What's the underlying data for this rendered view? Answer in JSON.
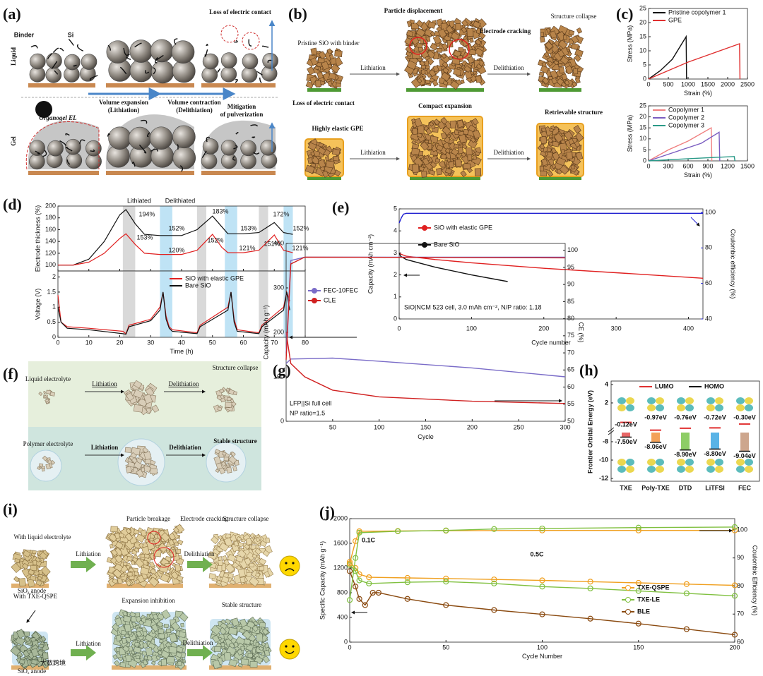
{
  "a": {
    "label": "(a)",
    "texts": [
      "Liquid",
      "Gel",
      "Binder",
      "Si",
      "Loss of electric contact",
      "Volume expansion",
      "(Lithiation)",
      "Volume contraction",
      "(Delithiation)",
      "Organogel EL",
      "Mitigation",
      "of pulverization"
    ]
  },
  "b": {
    "label": "(b)",
    "texts": [
      "Particle displacement",
      "Electrode cracking",
      "Structure collapse",
      "Pristine SiO with binder",
      "Lithiation",
      "Delithiation",
      "Loss of electric contact",
      "Compact expansion",
      "Retrievable structure",
      "Highly elastic GPE",
      "Lithiation",
      "Delithiation"
    ]
  },
  "c": {
    "label": "(c)",
    "charts": [
      {
        "type": "line",
        "xlabel": "Strain (%)",
        "ylabel": "Stress (MPa)",
        "xlim": [
          0,
          2500
        ],
        "xticks": [
          0,
          500,
          1000,
          1500,
          2000,
          2500
        ],
        "ylim": [
          0,
          25
        ],
        "yticks": [
          0,
          5,
          10,
          15,
          20,
          25
        ],
        "series": [
          {
            "name": "Pristine copolymer 1",
            "color": "#111111",
            "x": [
              0,
              300,
              600,
              950,
              960
            ],
            "values": [
              0,
              3,
              7,
              15,
              0
            ]
          },
          {
            "name": "GPE",
            "color": "#e03030",
            "x": [
              0,
              500,
              1000,
              1500,
              2000,
              2300,
              2310
            ],
            "values": [
              0,
              3,
              6,
              8.5,
              11,
              12.5,
              0
            ]
          }
        ]
      },
      {
        "type": "line",
        "xlabel": "Strain (%)",
        "ylabel": "Stress (MPa)",
        "xlim": [
          0,
          1500
        ],
        "xticks": [
          0,
          300,
          600,
          900,
          1200,
          1500
        ],
        "ylim": [
          0,
          25
        ],
        "yticks": [
          0,
          5,
          10,
          15,
          20,
          25
        ],
        "series": [
          {
            "name": "Copolymer 1",
            "color": "#f07f7f",
            "x": [
              0,
              300,
              600,
              950,
              960
            ],
            "values": [
              0,
              5,
              9,
              15,
              0
            ]
          },
          {
            "name": "Copolymer 2",
            "color": "#7a5cc0",
            "x": [
              0,
              400,
              800,
              1070,
              1080
            ],
            "values": [
              0,
              4,
              8,
              13,
              0
            ]
          },
          {
            "name": "Copolymer 3",
            "color": "#2a9a88",
            "x": [
              0,
              600,
              1300,
              1310
            ],
            "values": [
              0,
              1,
              2,
              0
            ]
          }
        ]
      }
    ]
  },
  "d": {
    "label": "(d)",
    "charts": [
      {
        "type": "line",
        "ylabel": "Electrode thickness (%)",
        "xlim": [
          0,
          80
        ],
        "xticks": [
          0,
          10,
          20,
          30,
          40,
          50,
          60,
          70,
          80
        ],
        "ylim": [
          90,
          200
        ],
        "yticks": [
          100,
          120,
          140,
          160,
          180,
          200
        ],
        "bands": [
          {
            "x": [
              21,
              25
            ],
            "color": "#d9d9d9"
          },
          {
            "x": [
              33,
              37
            ],
            "color": "#bfe3f5"
          },
          {
            "x": [
              45,
              48
            ],
            "color": "#d9d9d9"
          },
          {
            "x": [
              54,
              58
            ],
            "color": "#bfe3f5"
          },
          {
            "x": [
              65,
              68
            ],
            "color": "#d9d9d9"
          },
          {
            "x": [
              73,
              76
            ],
            "color": "#bfe3f5"
          }
        ],
        "annotations": [
          "Lithiated",
          "Delithiated",
          "194%",
          "152%",
          "183%",
          "153%",
          "172%",
          "152%",
          "153%",
          "120%",
          "152%",
          "121%",
          "151%",
          "121%"
        ],
        "series": [
          {
            "name": "Bare SiO",
            "color": "#111111",
            "x": [
              0,
              5,
              10,
              15,
              20,
              22,
              25,
              28,
              33,
              40,
              45,
              50,
              53,
              55,
              60,
              65,
              70,
              73,
              76
            ],
            "values": [
              100,
              100,
              110,
              140,
              185,
              194,
              170,
              152,
              150,
              150,
              160,
              183,
              165,
              153,
              153,
              155,
              172,
              155,
              152
            ]
          },
          {
            "name": "SiO with elastic GPE",
            "color": "#e02020",
            "x": [
              0,
              5,
              10,
              15,
              20,
              22,
              25,
              28,
              33,
              40,
              45,
              50,
              53,
              55,
              60,
              65,
              70,
              73,
              76
            ],
            "values": [
              100,
              100,
              105,
              120,
              145,
              153,
              135,
              120,
              118,
              118,
              125,
              152,
              130,
              121,
              121,
              125,
              151,
              125,
              121
            ]
          }
        ]
      },
      {
        "type": "line",
        "xlabel": "Time (h)",
        "ylabel": "Voltage (V)",
        "xlim": [
          0,
          80
        ],
        "xticks": [
          0,
          10,
          20,
          30,
          40,
          50,
          60,
          70,
          80
        ],
        "ylim": [
          0,
          2.2
        ],
        "yticks": [
          0,
          0.5,
          1,
          1.5,
          2
        ],
        "legend": true,
        "bands": [
          {
            "x": [
              21,
              25
            ],
            "color": "#d9d9d9"
          },
          {
            "x": [
              33,
              37
            ],
            "color": "#bfe3f5"
          },
          {
            "x": [
              45,
              48
            ],
            "color": "#d9d9d9"
          },
          {
            "x": [
              54,
              58
            ],
            "color": "#bfe3f5"
          },
          {
            "x": [
              65,
              68
            ],
            "color": "#d9d9d9"
          },
          {
            "x": [
              73,
              76
            ],
            "color": "#bfe3f5"
          }
        ],
        "series": [
          {
            "name": "SiO with elastic GPE",
            "color": "#e02020",
            "x": [
              0,
              1,
              3,
              10,
              21,
              22,
              23,
              30,
              33,
              34,
              35,
              36,
              37,
              45,
              46,
              55,
              56,
              57,
              58,
              65,
              66,
              73,
              74,
              75
            ],
            "values": [
              1.4,
              0.5,
              0.35,
              0.3,
              0.2,
              0.12,
              0.4,
              0.6,
              1,
              1.5,
              0.7,
              0.35,
              0.25,
              0.15,
              0.4,
              1,
              1.5,
              0.6,
              0.25,
              0.15,
              0.4,
              1,
              1.5,
              1.2
            ]
          },
          {
            "name": "Bare SiO",
            "color": "#111111",
            "x": [
              0,
              1,
              3,
              10,
              21,
              22,
              23,
              30,
              33,
              34,
              35,
              36,
              37,
              45,
              46,
              55,
              56,
              57,
              58,
              65,
              66,
              73,
              74,
              75
            ],
            "values": [
              1,
              0.5,
              0.3,
              0.25,
              0.12,
              0.1,
              0.35,
              0.55,
              0.9,
              1.5,
              0.6,
              0.3,
              0.2,
              0.12,
              0.35,
              0.9,
              1.5,
              0.5,
              0.2,
              0.12,
              0.35,
              0.9,
              1.5,
              0.9
            ]
          }
        ]
      }
    ]
  },
  "e": {
    "label": "(e)",
    "chart": {
      "type": "line",
      "xlabel": "Cycle number",
      "ylabel": "Capacity (mAh cm⁻²)",
      "y2label": "Coulombic efficiency (%)",
      "y2_color": "#2020d0",
      "xlim": [
        0,
        420
      ],
      "xticks": [
        0,
        100,
        200,
        300,
        400
      ],
      "ylim": [
        0,
        5
      ],
      "yticks": [
        0,
        1,
        2,
        3,
        4,
        5
      ],
      "y2lim": [
        40,
        102
      ],
      "y2ticks": [
        40,
        60,
        80,
        100
      ],
      "legend": true,
      "annotations": [
        "SiO|NCM 523 cell, 3.0 mAh cm⁻², N/P ratio: 1.18"
      ],
      "series": [
        {
          "name": "SiO with elastic GPE",
          "color": "#e02020",
          "x": [
            0,
            2,
            10,
            50,
            100,
            200,
            300,
            420
          ],
          "values": [
            3,
            2.95,
            2.85,
            2.7,
            2.55,
            2.3,
            2.1,
            1.85
          ]
        },
        {
          "name": "Bare SiO",
          "color": "#111111",
          "x": [
            0,
            2,
            10,
            50,
            100,
            150
          ],
          "values": [
            3,
            2.85,
            2.7,
            2.35,
            2,
            1.7
          ]
        },
        {
          "name": "Coulombic efficiency",
          "color": "#2020d0",
          "axis": "y2",
          "x": [
            0,
            3,
            6,
            10,
            420
          ],
          "values": [
            94,
            97,
            99,
            99.5,
            99.5
          ]
        }
      ]
    }
  },
  "f": {
    "label": "(f)",
    "texts": [
      "Liquid electrolyte",
      "Lithiation",
      "Delithiation",
      "Structure collapse",
      "Polymer electrolyte",
      "Lithiation",
      "Delithiation",
      "Stable structure"
    ]
  },
  "g": {
    "label": "(g)",
    "chart": {
      "type": "line",
      "xlabel": "Cycle",
      "ylabel": "Capacity (mAh g⁻¹)",
      "y2label": "CE (%)",
      "xlim": [
        0,
        300
      ],
      "xticks": [
        50,
        100,
        150,
        200,
        250,
        300
      ],
      "ylim": [
        0,
        400
      ],
      "yticks": [
        0,
        100,
        200,
        300,
        400
      ],
      "y2lim": [
        50,
        102
      ],
      "y2ticks": [
        50,
        55,
        60,
        65,
        70,
        75,
        80,
        85,
        90,
        95,
        100
      ],
      "legend": true,
      "annotations": [
        "LFP||Si full cell",
        "NP ratio=1.5"
      ],
      "series": [
        {
          "name": "FEC-10FEC",
          "color": "#7a6cc8",
          "x": [
            0,
            5,
            50,
            100,
            200,
            300
          ],
          "values": [
            130,
            140,
            142,
            135,
            120,
            100
          ]
        },
        {
          "name": "CLE",
          "color": "#d02020",
          "x": [
            0,
            5,
            20,
            50,
            100,
            200,
            300
          ],
          "values": [
            200,
            130,
            100,
            70,
            55,
            45,
            40
          ]
        },
        {
          "name": "CE FEC-10FEC",
          "color": "#7a6cc8",
          "axis": "y2",
          "x": [
            0,
            5,
            20,
            300
          ],
          "values": [
            70,
            97,
            98,
            98
          ]
        },
        {
          "name": "CE CLE",
          "color": "#d02020",
          "axis": "y2",
          "x": [
            0,
            5,
            20,
            300
          ],
          "values": [
            68,
            96,
            98,
            97.8
          ]
        }
      ]
    }
  },
  "h": {
    "label": "(h)",
    "chart": {
      "type": "energy",
      "ylabel": "Frontier Orbital Energy (eV)",
      "yticks": [
        4,
        2,
        -8,
        -10,
        -12
      ],
      "legend": [
        "LUMO",
        "HOMO"
      ],
      "legend_colors": [
        "#e03030",
        "#111111"
      ],
      "categories": [
        "TXE",
        "Poly-TXE",
        "DTD",
        "LiTFSI",
        "FEC"
      ],
      "colors": [
        "#e04040",
        "#f08a30",
        "#70c040",
        "#30a0e0",
        "#c09070"
      ],
      "lumo": [
        -0.12,
        -0.97,
        -0.76,
        -0.72,
        -0.3
      ],
      "lumo_labels": [
        "-0.12eV",
        "-0.97eV",
        "-0.76eV",
        "-0.72eV",
        "-0.30eV"
      ],
      "homo": [
        -7.5,
        -8.06,
        -8.9,
        -8.8,
        -9.04
      ],
      "homo_labels": [
        "-7.50eV",
        "-8.06eV",
        "-8.90eV",
        "-8.80eV",
        "-9.04eV"
      ]
    }
  },
  "i": {
    "label": "(i)",
    "texts": [
      "Particle breakage",
      "Electrode cracking",
      "Structure collapse",
      "With liquid electrolyte",
      "Lithiation",
      "Delithiation",
      "SiOₓ anode",
      "With TXE-QSPE",
      "Expansion inhibition",
      "Stable structure",
      "Lithiation",
      "Delithiation",
      "SiOₓ anode",
      "大数跨境"
    ]
  },
  "j": {
    "label": "(j)",
    "chart": {
      "type": "line",
      "xlabel": "Cycle Number",
      "ylabel": "Specific Capacity (mAh g⁻¹)",
      "y2label": "Coulombic Efficiency (%)",
      "xlim": [
        0,
        200
      ],
      "xticks": [
        0,
        50,
        100,
        150,
        200
      ],
      "ylim": [
        0,
        2000
      ],
      "yticks": [
        0,
        400,
        800,
        1200,
        1600,
        2000
      ],
      "y2lim": [
        60,
        104
      ],
      "y2ticks": [
        60,
        70,
        80,
        90,
        100
      ],
      "legend": true,
      "annotations": [
        "0.1C",
        "0.5C"
      ],
      "series": [
        {
          "name": "TXE-QSPE",
          "color": "#f0a020",
          "marker": "circle",
          "x": [
            0,
            3,
            5,
            10,
            30,
            50,
            75,
            100,
            125,
            150,
            175,
            200
          ],
          "values": [
            1300,
            1200,
            1100,
            1050,
            1040,
            1030,
            1015,
            1000,
            980,
            960,
            940,
            920
          ]
        },
        {
          "name": "TXE-LE",
          "color": "#80c040",
          "marker": "circle",
          "x": [
            0,
            3,
            5,
            10,
            30,
            50,
            75,
            100,
            125,
            150,
            175,
            200
          ],
          "values": [
            1250,
            1150,
            1000,
            950,
            970,
            980,
            950,
            900,
            870,
            830,
            790,
            750
          ]
        },
        {
          "name": "BLE",
          "color": "#8a4a10",
          "marker": "circle",
          "x": [
            0,
            3,
            5,
            8,
            12,
            15,
            30,
            50,
            75,
            100,
            125,
            150,
            175,
            200
          ],
          "values": [
            1150,
            900,
            700,
            600,
            800,
            800,
            700,
            600,
            520,
            450,
            380,
            300,
            210,
            120
          ]
        },
        {
          "name": "CE TXE-QSPE",
          "color": "#f0a020",
          "axis": "y2",
          "marker": "circle",
          "x": [
            0,
            3,
            5,
            25,
            50,
            100,
            150,
            200
          ],
          "values": [
            88,
            96,
            99.5,
            99.6,
            99.7,
            99.8,
            99.8,
            99.8
          ]
        },
        {
          "name": "CE TXE-LE",
          "color": "#80c040",
          "axis": "y2",
          "marker": "circle",
          "x": [
            0,
            3,
            5,
            25,
            50,
            75,
            100,
            150,
            200
          ],
          "values": [
            75,
            90,
            99,
            99.5,
            99.8,
            100.3,
            100.5,
            100.8,
            101
          ]
        }
      ]
    }
  }
}
